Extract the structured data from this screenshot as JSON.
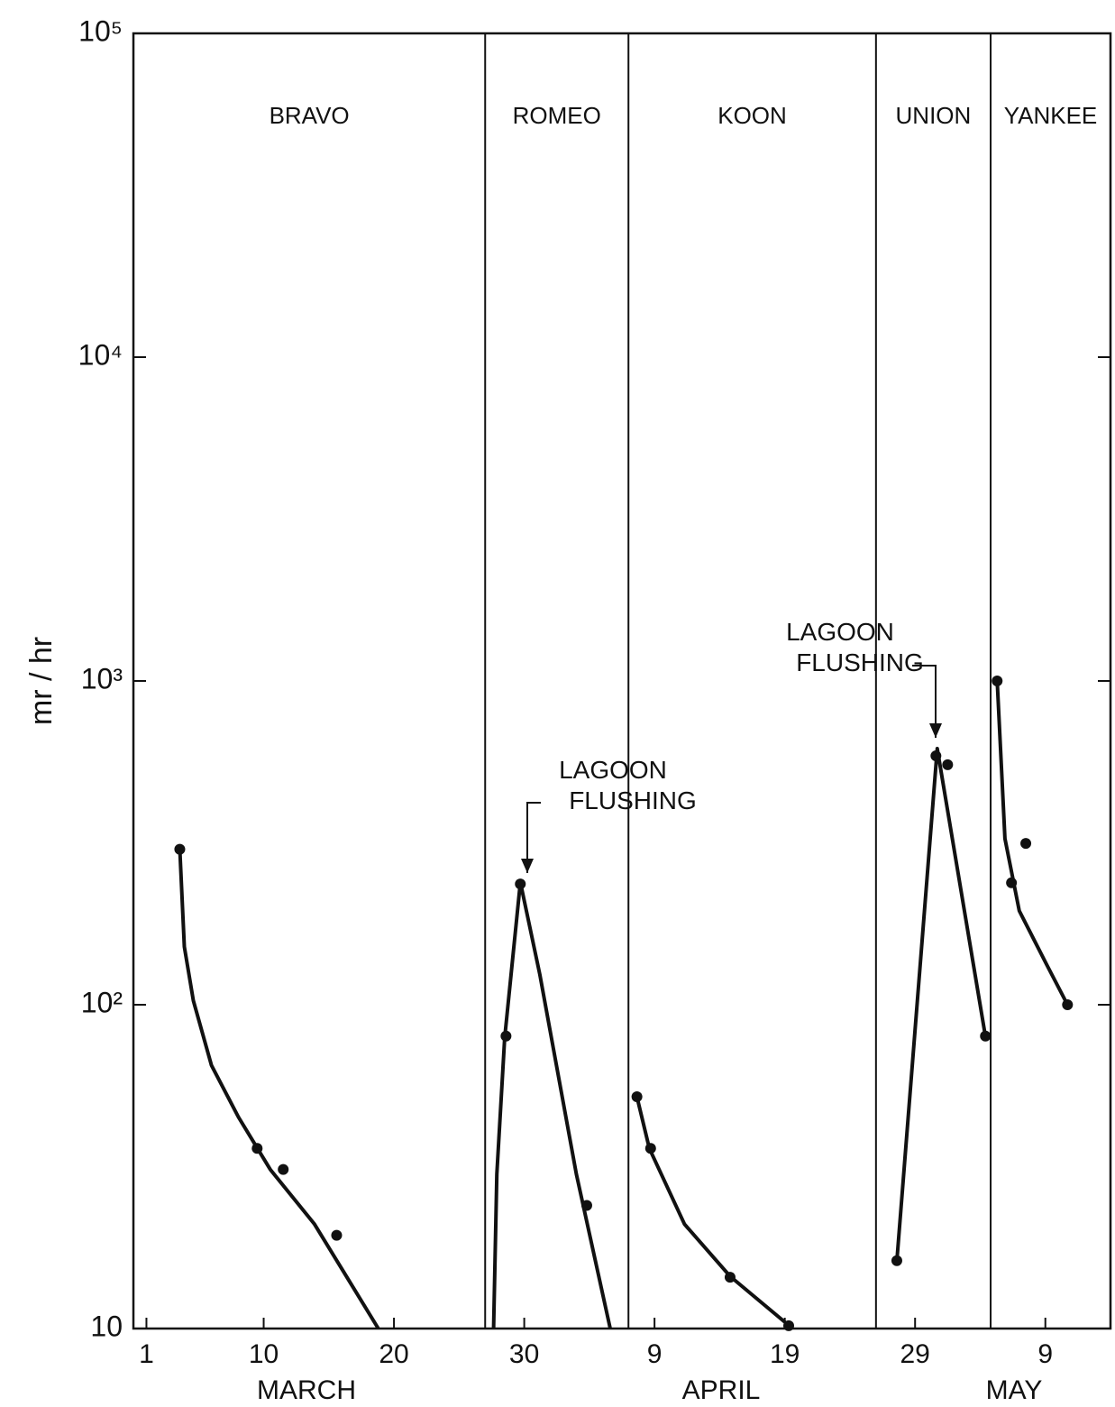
{
  "chart_data": {
    "type": "line",
    "y_label": "mr / hr",
    "y_log": true,
    "xlim": [
      0,
      75
    ],
    "ylim": [
      10,
      100000
    ],
    "xticks": [
      1,
      10,
      20,
      30,
      {
        "value": 40,
        "label": "9"
      },
      {
        "value": 50,
        "label": "19"
      },
      {
        "value": 60,
        "label": "29"
      },
      {
        "value": 70,
        "label": "9"
      }
    ],
    "yticks": [
      10,
      {
        "value": 100,
        "label": "10²"
      },
      {
        "value": 1000,
        "label": "10³"
      },
      {
        "value": 10000,
        "label": "10⁴"
      },
      {
        "value": 100000,
        "label": "10⁵"
      }
    ],
    "months": [
      "MARCH",
      "APRIL",
      "MAY"
    ],
    "dividers": [
      27,
      38,
      57,
      65.8
    ],
    "annotations": [
      "LAGOON FLUSHING",
      "LAGOON FLUSHING"
    ],
    "color": "#111111",
    "series": [
      {
        "name": "BRAVO",
        "x": [
          3.56,
          9.5,
          11.5,
          15.6
        ],
        "values": [
          302,
          36,
          31,
          19.4
        ],
        "fit_x": [
          3.56,
          3.91,
          4.6,
          5.99,
          8.06,
          10.5,
          13.9,
          18.8
        ],
        "fit_values": [
          302,
          151,
          103,
          65,
          45,
          31,
          21,
          10
        ]
      },
      {
        "name": "ROMEO",
        "x": [
          28.6,
          29.7,
          34.8
        ],
        "values": [
          80,
          236,
          24
        ],
        "fit_x": [
          27.65,
          27.9,
          28.5,
          29.7,
          31.2,
          34.0,
          36.6
        ],
        "fit_values": [
          10,
          30,
          79,
          239,
          124,
          30,
          10
        ]
      },
      {
        "name": "KOON",
        "x": [
          38.65,
          39.7,
          45.8,
          50.3
        ],
        "values": [
          52,
          36,
          14.4,
          10.2
        ],
        "fit_x": [
          38.65,
          39.6,
          42.3,
          45.8,
          50.6
        ],
        "fit_values": [
          52,
          36,
          21,
          14.5,
          10
        ]
      },
      {
        "name": "UNION",
        "x": [
          58.6,
          61.6,
          62.5,
          65.4
        ],
        "values": [
          16.2,
          587,
          551,
          80
        ],
        "fit_x": [
          58.6,
          61.7,
          65.4
        ],
        "fit_values": [
          16.2,
          618,
          80
        ]
      },
      {
        "name": "YANKEE",
        "x": [
          66.3,
          67.4,
          68.5,
          71.7
        ],
        "values": [
          1000,
          238,
          315,
          100
        ],
        "fit_x": [
          66.3,
          66.9,
          68.0,
          70.1,
          71.7
        ],
        "fit_values": [
          1000,
          326,
          195,
          133,
          100
        ]
      }
    ]
  }
}
